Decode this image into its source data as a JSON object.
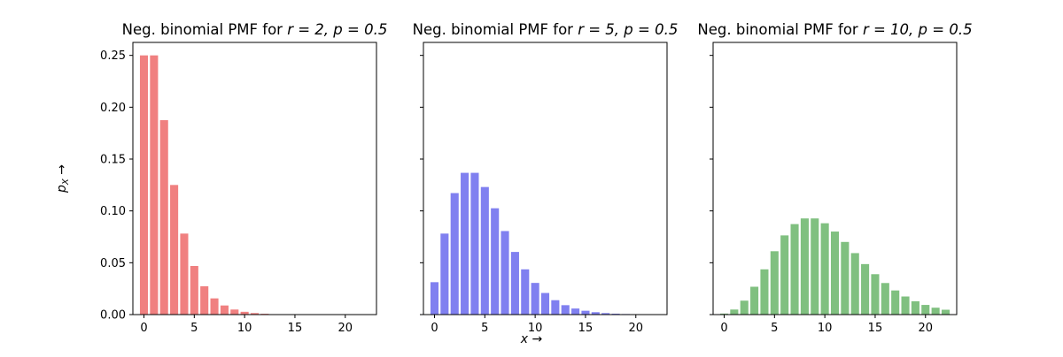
{
  "chart_data": [
    {
      "type": "bar",
      "title_text": "Neg. binomial PMF for ",
      "title_math": "r = 2, p = 0.5",
      "r": 2,
      "p": 0.5,
      "color": "#f08080",
      "x": [
        0,
        1,
        2,
        3,
        4,
        5,
        6,
        7,
        8,
        9,
        10,
        11,
        12,
        13,
        14,
        15,
        16,
        17,
        18,
        19,
        20,
        21,
        22
      ],
      "values": [
        0.25,
        0.25,
        0.1875,
        0.125,
        0.078125,
        0.046875,
        0.02734,
        0.01563,
        0.00879,
        0.00488,
        0.00269,
        0.00146,
        0.00079,
        0.00043,
        0.00023,
        0.00012,
        6e-05,
        3e-05,
        2e-05,
        1e-05,
        5e-06,
        2e-06,
        1e-06
      ],
      "xlim": [
        -1.1,
        23.1
      ],
      "ylim": [
        0,
        0.2625
      ],
      "xticks": [
        0,
        5,
        10,
        15,
        20
      ],
      "yticks": [
        0.0,
        0.05,
        0.1,
        0.15,
        0.2,
        0.25
      ],
      "yticklabels": [
        "0.00",
        "0.05",
        "0.10",
        "0.15",
        "0.20",
        "0.25"
      ],
      "show_yticklabels": true
    },
    {
      "type": "bar",
      "title_text": "Neg. binomial PMF for ",
      "title_math": "r = 5, p = 0.5",
      "r": 5,
      "p": 0.5,
      "color": "#8080f0",
      "x": [
        0,
        1,
        2,
        3,
        4,
        5,
        6,
        7,
        8,
        9,
        10,
        11,
        12,
        13,
        14,
        15,
        16,
        17,
        18,
        19,
        20,
        21,
        22
      ],
      "values": [
        0.03125,
        0.07813,
        0.11719,
        0.13672,
        0.13672,
        0.12305,
        0.10254,
        0.08057,
        0.06042,
        0.04364,
        0.03055,
        0.02083,
        0.01389,
        0.00908,
        0.00584,
        0.0037,
        0.00231,
        0.00143,
        0.00087,
        0.00053,
        0.00032,
        0.00019,
        0.00011
      ],
      "xlim": [
        -1.1,
        23.1
      ],
      "ylim": [
        0,
        0.2625
      ],
      "xticks": [
        0,
        5,
        10,
        15,
        20
      ],
      "yticks": [
        0.0,
        0.05,
        0.1,
        0.15,
        0.2,
        0.25
      ],
      "show_yticklabels": false
    },
    {
      "type": "bar",
      "title_text": "Neg. binomial PMF for ",
      "title_math": "r = 10, p = 0.5",
      "r": 10,
      "p": 0.5,
      "color": "#80c080",
      "x": [
        0,
        1,
        2,
        3,
        4,
        5,
        6,
        7,
        8,
        9,
        10,
        11,
        12,
        13,
        14,
        15,
        16,
        17,
        18,
        19,
        20,
        21,
        22
      ],
      "values": [
        0.00098,
        0.00488,
        0.01343,
        0.02686,
        0.04364,
        0.0611,
        0.07638,
        0.08728,
        0.09274,
        0.09274,
        0.08809,
        0.08008,
        0.07007,
        0.05929,
        0.04871,
        0.03897,
        0.03044,
        0.02328,
        0.01746,
        0.01286,
        0.00932,
        0.00665,
        0.00469
      ],
      "xlim": [
        -1.1,
        23.1
      ],
      "ylim": [
        0,
        0.2625
      ],
      "xticks": [
        0,
        5,
        10,
        15,
        20
      ],
      "yticks": [
        0.0,
        0.05,
        0.1,
        0.15,
        0.2,
        0.25
      ],
      "show_yticklabels": false
    }
  ],
  "shared": {
    "xlabel": "x →",
    "ylabel_main": "p",
    "ylabel_sub": "X",
    "ylabel_arrow": " →"
  }
}
